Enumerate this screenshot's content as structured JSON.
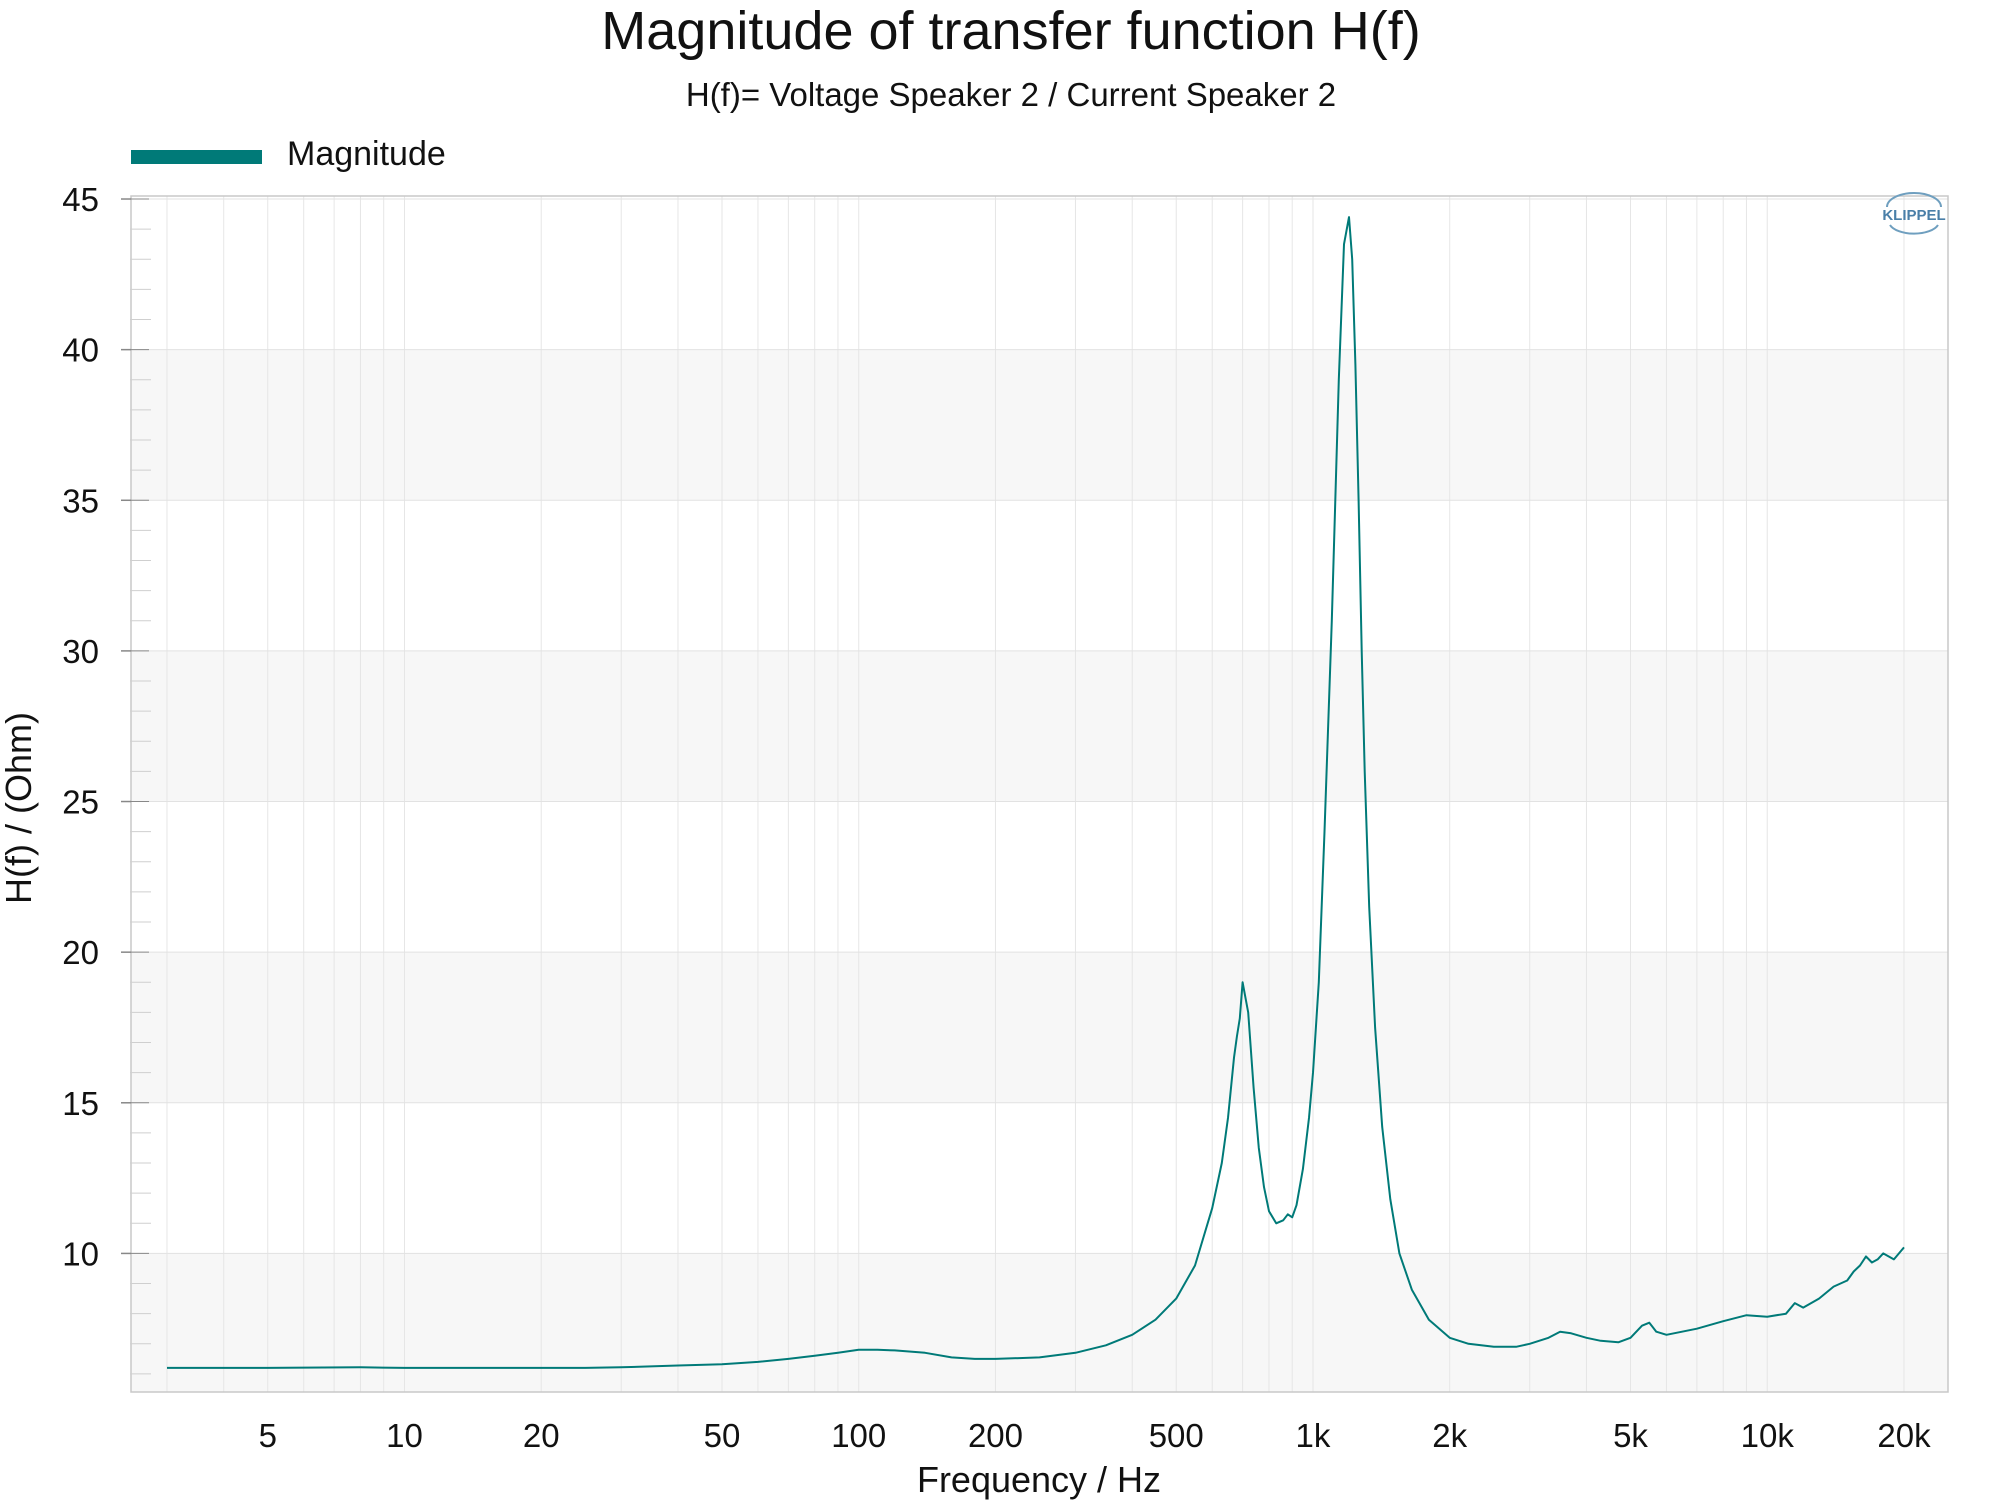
{
  "chart_data": {
    "type": "line",
    "title": "Magnitude of transfer function H(f)",
    "subtitle": "H(f)= Voltage Speaker 2 / Current Speaker 2",
    "xlabel": "Frequency / Hz",
    "ylabel": "H(f) / (Ohm)",
    "xscale": "log",
    "xlim": [
      2.5,
      25000
    ],
    "ylim": [
      5.4,
      45.1
    ],
    "x_ticks": [
      5,
      10,
      20,
      50,
      100,
      200,
      500,
      1000,
      2000,
      5000,
      10000,
      20000
    ],
    "x_tick_labels": [
      "5",
      "10",
      "20",
      "50",
      "100",
      "200",
      "500",
      "1k",
      "2k",
      "5k",
      "10k",
      "20k"
    ],
    "y_ticks": [
      10,
      15,
      20,
      25,
      30,
      35,
      40,
      45
    ],
    "y_tick_labels": [
      "10",
      "15",
      "20",
      "25",
      "30",
      "35",
      "40",
      "45"
    ],
    "grid": true,
    "legend_position": "top-left",
    "watermark": "KLIPPEL",
    "series": [
      {
        "name": "Magnitude",
        "color": "#007a78",
        "x": [
          3,
          5,
          8,
          10,
          15,
          20,
          25,
          30,
          40,
          50,
          60,
          70,
          80,
          90,
          100,
          110,
          120,
          140,
          160,
          180,
          200,
          250,
          300,
          350,
          400,
          450,
          500,
          550,
          600,
          630,
          650,
          670,
          680,
          690,
          700,
          720,
          740,
          760,
          780,
          800,
          830,
          860,
          880,
          900,
          920,
          950,
          980,
          1000,
          1030,
          1060,
          1100,
          1140,
          1170,
          1200,
          1220,
          1240,
          1260,
          1280,
          1300,
          1330,
          1370,
          1420,
          1480,
          1550,
          1650,
          1800,
          2000,
          2200,
          2500,
          2800,
          3000,
          3300,
          3500,
          3700,
          4000,
          4300,
          4700,
          5000,
          5300,
          5500,
          5700,
          6000,
          7000,
          8000,
          9000,
          10000,
          11000,
          11500,
          12000,
          13000,
          14000,
          15000,
          15500,
          16000,
          16500,
          17000,
          17500,
          18000,
          19000,
          20000
        ],
        "y": [
          6.2,
          6.2,
          6.22,
          6.2,
          6.2,
          6.2,
          6.2,
          6.22,
          6.28,
          6.32,
          6.4,
          6.5,
          6.6,
          6.7,
          6.8,
          6.8,
          6.78,
          6.7,
          6.55,
          6.5,
          6.5,
          6.55,
          6.7,
          6.95,
          7.3,
          7.8,
          8.5,
          9.6,
          11.5,
          13.0,
          14.5,
          16.5,
          17.2,
          17.8,
          19.0,
          18.0,
          15.5,
          13.5,
          12.2,
          11.4,
          11.0,
          11.1,
          11.3,
          11.2,
          11.6,
          12.8,
          14.5,
          16.0,
          19.0,
          24.0,
          31.0,
          39.0,
          43.5,
          44.4,
          43.0,
          39.5,
          35.0,
          30.0,
          26.0,
          21.5,
          17.5,
          14.2,
          11.8,
          10.0,
          8.8,
          7.8,
          7.2,
          7.0,
          6.9,
          6.9,
          7.0,
          7.2,
          7.4,
          7.35,
          7.2,
          7.1,
          7.05,
          7.2,
          7.6,
          7.7,
          7.4,
          7.3,
          7.5,
          7.75,
          7.95,
          7.9,
          8.0,
          8.35,
          8.2,
          8.5,
          8.9,
          9.1,
          9.4,
          9.6,
          9.9,
          9.7,
          9.8,
          10.0,
          9.8,
          10.2
        ]
      }
    ]
  }
}
